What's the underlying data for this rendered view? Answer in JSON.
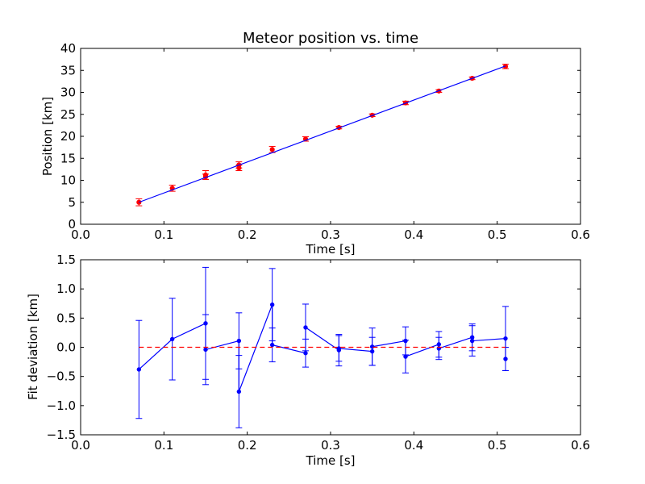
{
  "chart_data": [
    {
      "type": "scatter",
      "title": "Meteor position vs. time",
      "xlabel": "Time [s]",
      "ylabel": "Position [km]",
      "xlim": [
        0.0,
        0.6
      ],
      "ylim": [
        0,
        40
      ],
      "xticks": [
        "0.0",
        "0.1",
        "0.2",
        "0.3",
        "0.4",
        "0.5",
        "0.6"
      ],
      "yticks": [
        "0",
        "5",
        "10",
        "15",
        "20",
        "25",
        "30",
        "35",
        "40"
      ],
      "grid": false,
      "colors": {
        "points": "#ff0000",
        "fit": "#0000ff"
      },
      "series": [
        {
          "kind": "errorbar",
          "x": [
            0.07,
            0.11,
            0.15,
            0.15,
            0.19,
            0.19,
            0.23,
            0.27,
            0.31,
            0.35,
            0.39,
            0.43,
            0.47,
            0.51
          ],
          "y": [
            5.0,
            8.2,
            11.2,
            10.8,
            13.5,
            12.8,
            17.0,
            19.4,
            22.0,
            24.8,
            27.6,
            30.3,
            33.2,
            35.9
          ],
          "yerr": [
            0.8,
            0.7,
            1.0,
            0.6,
            0.7,
            0.6,
            0.7,
            0.5,
            0.3,
            0.3,
            0.4,
            0.3,
            0.3,
            0.5
          ]
        },
        {
          "kind": "line",
          "x": [
            0.07,
            0.51
          ],
          "y": [
            5.0,
            36.0
          ]
        }
      ]
    },
    {
      "type": "line",
      "title": "",
      "xlabel": "Time [s]",
      "ylabel": "Fit deviation [km]",
      "xlim": [
        0.0,
        0.6
      ],
      "ylim": [
        -1.5,
        1.5
      ],
      "xticks": [
        "0.0",
        "0.1",
        "0.2",
        "0.3",
        "0.4",
        "0.5",
        "0.6"
      ],
      "yticks": [
        "−1.5",
        "−1.0",
        "−0.5",
        "0.0",
        "0.5",
        "1.0",
        "1.5"
      ],
      "grid": false,
      "colors": {
        "line": "#0000ff",
        "zero": "#ff0000"
      },
      "series": [
        {
          "kind": "errorbar-line",
          "x": [
            0.07,
            0.11,
            0.15,
            0.15,
            0.19,
            0.19,
            0.23,
            0.23,
            0.27,
            0.27,
            0.31,
            0.31,
            0.35,
            0.35,
            0.39,
            0.39,
            0.43,
            0.43,
            0.47,
            0.47,
            0.51,
            0.51
          ],
          "y": [
            -0.38,
            0.14,
            0.41,
            -0.04,
            0.11,
            -0.76,
            0.73,
            0.04,
            -0.1,
            0.34,
            -0.05,
            -0.02,
            -0.07,
            0.01,
            0.11,
            -0.16,
            0.05,
            -0.02,
            0.17,
            0.11,
            0.15,
            -0.2
          ],
          "yerr": [
            0.84,
            0.7,
            0.96,
            0.6,
            0.48,
            0.62,
            0.62,
            0.29,
            0.24,
            0.4,
            0.27,
            0.22,
            0.24,
            0.32,
            0.24,
            0.28,
            0.22,
            0.19,
            0.23,
            0.26,
            0.55,
            0.2
          ]
        },
        {
          "kind": "hline",
          "y": 0.0
        }
      ]
    }
  ]
}
